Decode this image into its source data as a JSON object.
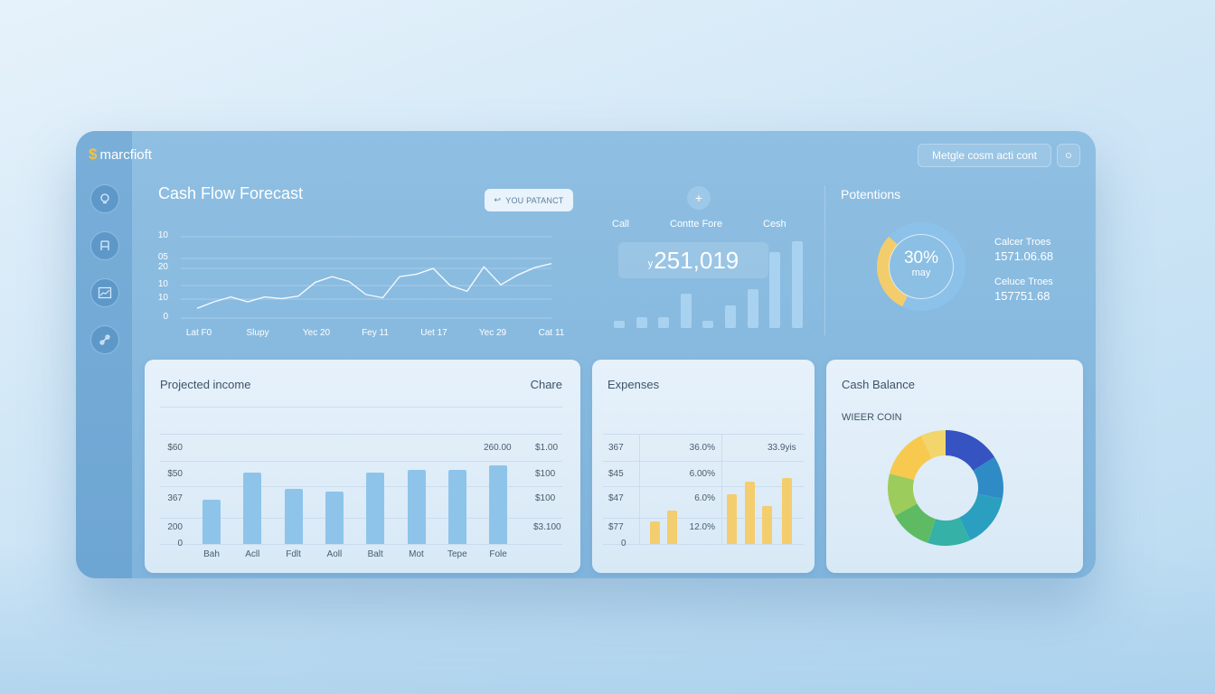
{
  "app": {
    "brand": "marcfioft"
  },
  "colors": {
    "accent": "#f2c04a",
    "panel_blue": "#80b4dc",
    "bar_blue": "#8ec4ea",
    "bar_yellow": "#f4cd6f"
  },
  "sidebar": {
    "items": [
      {
        "icon": "lightbulb-icon"
      },
      {
        "icon": "chair-icon"
      },
      {
        "icon": "chart-icon"
      },
      {
        "icon": "link-icon"
      }
    ]
  },
  "toolbar": {
    "search_text": "Metgle cosm acti cont",
    "settings_icon": "settings-icon"
  },
  "forecast": {
    "title": "Cash Flow Forecast",
    "report_button": "YOU PATANCT",
    "y_labels": [
      "10",
      "05",
      "20",
      "10",
      "10",
      "0"
    ],
    "x_labels": [
      "Lat F0",
      "Slupy",
      "Yec 20",
      "Fey 11",
      "Uet 17",
      "Yec 29",
      "Cat 11"
    ],
    "chart_data": {
      "type": "line",
      "title": "Cash Flow Forecast",
      "ylim": [
        0,
        10
      ],
      "series": [
        {
          "values": [
            1.2,
            2.0,
            2.6,
            2.0,
            2.6,
            2.4,
            2.7,
            4.4,
            5.1,
            4.5,
            2.9,
            2.5,
            5.1,
            5.4,
            6.1,
            4.0,
            3.3,
            6.3,
            4.1,
            5.3,
            6.2,
            6.7
          ]
        }
      ]
    }
  },
  "summary": {
    "plus_label": "+",
    "col_labels": [
      "Call",
      "Contte Fore",
      "Cesh"
    ],
    "amount_prefix": "y",
    "amount": "251,019",
    "chart_data": {
      "type": "bar",
      "values": [
        8,
        12,
        12,
        40,
        8,
        26,
        45,
        87,
        100
      ]
    }
  },
  "potentions": {
    "title": "Potentions",
    "donut_percent": "30%",
    "donut_sub": "may",
    "items": [
      {
        "label": "Calcer Troes",
        "value": "1571.06.68"
      },
      {
        "label": "Celuce Troes",
        "value": "157751.68"
      }
    ],
    "chart_data": {
      "type": "pie",
      "values": [
        30,
        70
      ],
      "colors": [
        "#f3cd6b",
        "#8cc2ea"
      ]
    }
  },
  "projected_income": {
    "title": "Projected income",
    "right_title": "Chare",
    "y_labels": [
      "$60",
      "$50",
      "367",
      "200",
      "0"
    ],
    "right_top_labels": [
      "260.00",
      "$1.00"
    ],
    "right_labels": [
      "$100",
      "$100",
      "$3.100"
    ],
    "x_labels": [
      "Bah",
      "Acll",
      "Fdlt",
      "Aoll",
      "Balt",
      "Mot",
      "Tepe",
      "Fole"
    ],
    "chart_data": {
      "type": "bar",
      "categories": [
        "Bah",
        "Acll",
        "Fdlt",
        "Aoll",
        "Balt",
        "Mot",
        "Tepe",
        "Fole"
      ],
      "values": [
        33,
        53,
        41,
        39,
        53,
        55,
        55,
        58
      ]
    }
  },
  "expenses": {
    "title": "Expenses",
    "left_labels": [
      "367",
      "$45",
      "$47",
      "$77",
      "0"
    ],
    "mid_labels": [
      "36.0%",
      "6.00%",
      "6.0%",
      "12.0%"
    ],
    "right_top_label": "33.9yis",
    "chart_data": {
      "type": "bar",
      "values": [
        17,
        25,
        0,
        0,
        37,
        46,
        28,
        49
      ]
    }
  },
  "cash_balance": {
    "title": "Cash Balance",
    "subtitle": "WIEER COIN",
    "chart_data": {
      "type": "pie",
      "values": [
        16,
        12,
        15,
        12,
        12,
        12,
        14,
        7
      ],
      "colors": [
        "#3553c1",
        "#2f8bc5",
        "#2a9fc0",
        "#35b1a7",
        "#5ebb63",
        "#9ccc5b",
        "#f7c94f",
        "#f2d66b"
      ]
    }
  }
}
